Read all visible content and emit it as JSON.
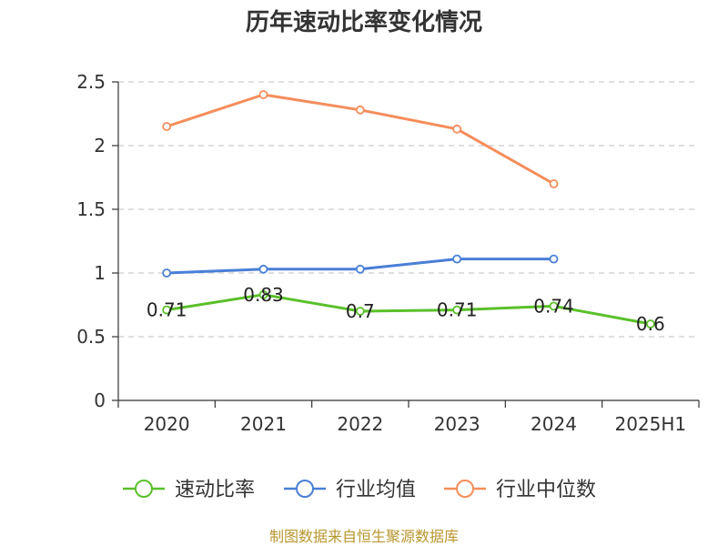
{
  "chart_data": {
    "type": "line",
    "title": "历年速动比率变化情况",
    "categories": [
      "2020",
      "2021",
      "2022",
      "2023",
      "2024",
      "2025H1"
    ],
    "ylim": [
      0,
      2.5
    ],
    "yticks": [
      "0",
      "0.5",
      "1",
      "1.5",
      "2",
      "2.5"
    ],
    "grid": true,
    "legend_position": "bottom",
    "series": [
      {
        "name": "速动比率",
        "color": "#5ac02a",
        "values": [
          0.71,
          0.83,
          0.7,
          0.71,
          0.74,
          0.6
        ],
        "labels": [
          "0.71",
          "0.83",
          "0.7",
          "0.71",
          "0.74",
          "0.6"
        ]
      },
      {
        "name": "行业均值",
        "color": "#4a7fd6",
        "values": [
          1.0,
          1.03,
          1.03,
          1.11,
          1.11,
          null
        ]
      },
      {
        "name": "行业中位数",
        "color": "#f58d5a",
        "values": [
          2.15,
          2.4,
          2.28,
          2.13,
          1.7,
          null
        ]
      }
    ]
  },
  "source": "制图数据来自恒生聚源数据库"
}
